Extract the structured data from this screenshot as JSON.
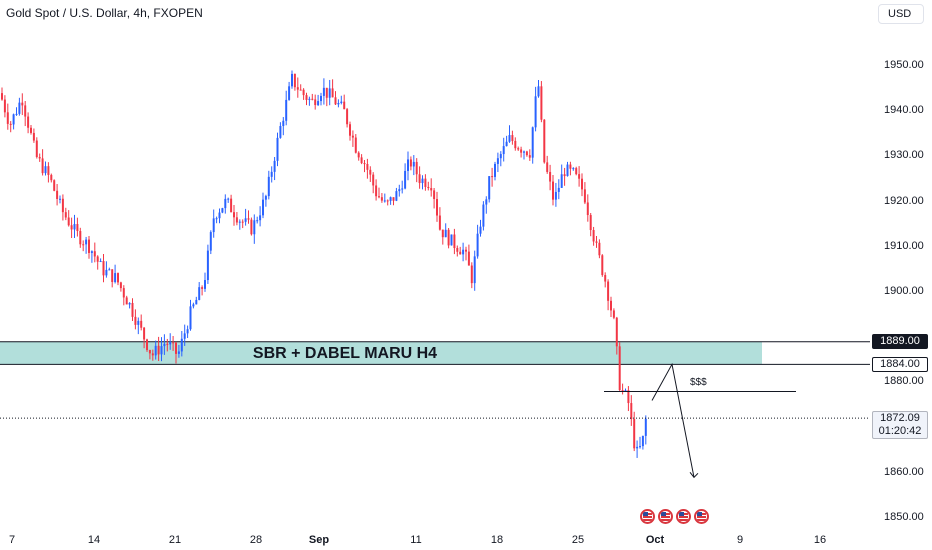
{
  "header": {
    "title": "Gold Spot / U.S. Dollar, 4h, FXOPEN",
    "currency": "USD"
  },
  "annotations": {
    "zone_label": "SBR + DABEL MARU H4",
    "liquidity_label": "$$$"
  },
  "price_tags": {
    "zone_top": "1889.00",
    "zone_bottom": "1884.00",
    "last_price": "1872.09",
    "countdown": "01:20:42"
  },
  "colors": {
    "up": "#2962ff",
    "down": "#f23645",
    "zone": "#b2dfdb",
    "text": "#131722"
  },
  "chart_data": {
    "type": "candlestick",
    "title": "Gold Spot / U.S. Dollar, 4h, FXOPEN",
    "ylim": [
      1848,
      1962
    ],
    "y_ticks": [
      "1950.00",
      "1940.00",
      "1930.00",
      "1920.00",
      "1910.00",
      "1900.00",
      "1880.00",
      "1860.00",
      "1850.00"
    ],
    "x_ticks": [
      {
        "label": "7",
        "bold": false
      },
      {
        "label": "14",
        "bold": false
      },
      {
        "label": "21",
        "bold": false
      },
      {
        "label": "28",
        "bold": false
      },
      {
        "label": "Sep",
        "bold": true
      },
      {
        "label": "11",
        "bold": false
      },
      {
        "label": "18",
        "bold": false
      },
      {
        "label": "25",
        "bold": false
      },
      {
        "label": "Oct",
        "bold": true
      },
      {
        "label": "9",
        "bold": false
      },
      {
        "label": "16",
        "bold": false
      }
    ],
    "zone": {
      "from": 1884,
      "to": 1889
    },
    "liquidity_level": 1878,
    "last_price": 1872.09,
    "close_path": [
      [
        0,
        1944
      ],
      [
        10,
        1937
      ],
      [
        22,
        1943
      ],
      [
        36,
        1930
      ],
      [
        50,
        1925
      ],
      [
        62,
        1918
      ],
      [
        76,
        1913
      ],
      [
        90,
        1910
      ],
      [
        102,
        1905
      ],
      [
        116,
        1903
      ],
      [
        130,
        1897
      ],
      [
        142,
        1891
      ],
      [
        152,
        1886
      ],
      [
        166,
        1889
      ],
      [
        178,
        1886
      ],
      [
        190,
        1895
      ],
      [
        204,
        1902
      ],
      [
        214,
        1917
      ],
      [
        226,
        1920
      ],
      [
        240,
        1916
      ],
      [
        252,
        1914
      ],
      [
        266,
        1921
      ],
      [
        280,
        1936
      ],
      [
        292,
        1947
      ],
      [
        302,
        1944
      ],
      [
        312,
        1942
      ],
      [
        322,
        1945
      ],
      [
        332,
        1943
      ],
      [
        344,
        1940
      ],
      [
        356,
        1932
      ],
      [
        366,
        1928
      ],
      [
        376,
        1922
      ],
      [
        386,
        1919
      ],
      [
        398,
        1922
      ],
      [
        410,
        1929
      ],
      [
        420,
        1925
      ],
      [
        432,
        1924
      ],
      [
        440,
        1914
      ],
      [
        452,
        1911
      ],
      [
        464,
        1909
      ],
      [
        472,
        1903
      ],
      [
        480,
        1915
      ],
      [
        490,
        1925
      ],
      [
        500,
        1930
      ],
      [
        510,
        1934
      ],
      [
        520,
        1932
      ],
      [
        530,
        1931
      ],
      [
        538,
        1947
      ],
      [
        544,
        1929
      ],
      [
        554,
        1920
      ],
      [
        564,
        1927
      ],
      [
        574,
        1926
      ],
      [
        584,
        1922
      ],
      [
        596,
        1910
      ],
      [
        606,
        1902
      ],
      [
        614,
        1893
      ],
      [
        620,
        1879
      ],
      [
        628,
        1876
      ],
      [
        636,
        1864
      ],
      [
        642,
        1866
      ],
      [
        646,
        1872
      ]
    ],
    "projection": [
      [
        652,
        1876
      ],
      [
        672,
        1884
      ],
      [
        694,
        1859
      ]
    ]
  }
}
